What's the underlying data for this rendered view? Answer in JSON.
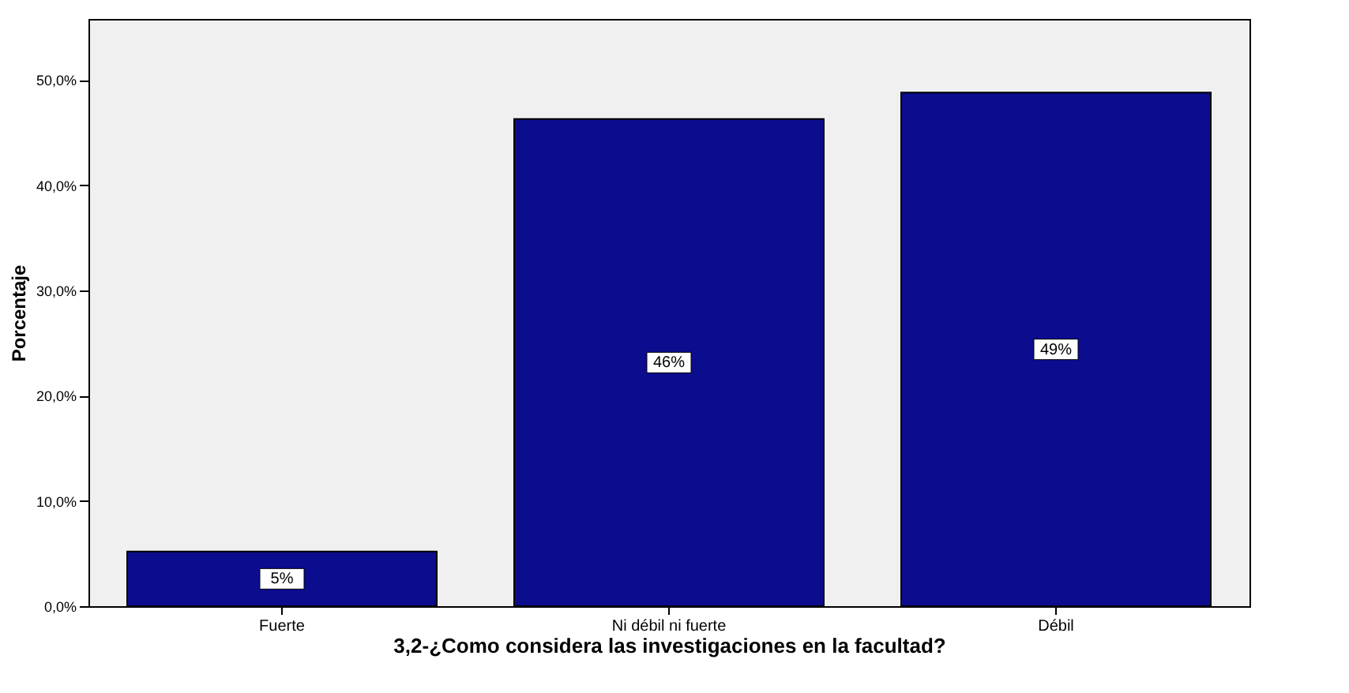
{
  "chart_data": {
    "type": "bar",
    "xlabel": "3,2-¿Como considera las investigaciones en la facultad?",
    "ylabel": "Porcentaje",
    "categories": [
      "Fuerte",
      "Ni débil ni fuerte",
      "Débil"
    ],
    "values": [
      5.2,
      46.3,
      48.8
    ],
    "value_labels": [
      "5%",
      "46%",
      "49%"
    ],
    "color": "#0c0c8e",
    "ylim": [
      0,
      55.8
    ],
    "yticks": [
      {
        "value": 0,
        "label": "0,0%"
      },
      {
        "value": 10,
        "label": "10,0%"
      },
      {
        "value": 20,
        "label": "20,0%"
      },
      {
        "value": 30,
        "label": "30,0%"
      },
      {
        "value": 40,
        "label": "40,0%"
      },
      {
        "value": 50,
        "label": "50,0%"
      }
    ],
    "grid": false
  }
}
